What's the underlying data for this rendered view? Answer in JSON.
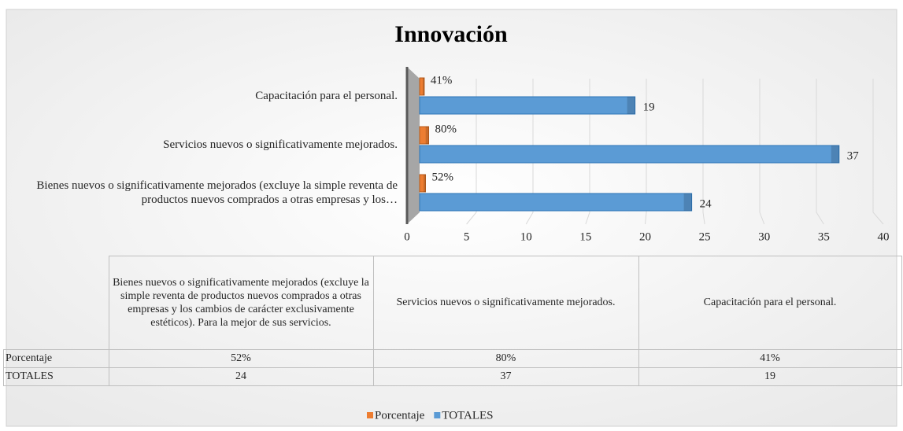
{
  "chart_data": {
    "type": "bar",
    "title": "Innovación",
    "categories": [
      "Bienes nuevos o significativamente mejorados (excluye la simple reventa de productos nuevos comprados a otras empresas y los cambios de carácter exclusivamente estéticos). Para la mejor de sus servicios.",
      "Servicios nuevos o significativamente mejorados.",
      "Capacitación para el personal."
    ],
    "axis_labels": [
      "Bienes nuevos o significativamente mejorados (excluye la simple reventa de productos nuevos comprados a otras empresas y los…",
      "Servicios nuevos o significativamente mejorados.",
      "Capacitación para el personal."
    ],
    "series": [
      {
        "name": "Porcentaje",
        "color": "#ed7d31",
        "values": [
          0.52,
          0.8,
          0.41
        ],
        "value_labels": [
          "52%",
          "80%",
          "41%"
        ]
      },
      {
        "name": "TOTALES",
        "color": "#5b9bd5",
        "values": [
          24,
          37,
          19
        ]
      }
    ],
    "xlim": [
      0,
      40
    ],
    "xticks": [
      0,
      5,
      10,
      15,
      20,
      25,
      30,
      35,
      40
    ],
    "grid": true,
    "legend": "bottom",
    "data_table": true
  }
}
